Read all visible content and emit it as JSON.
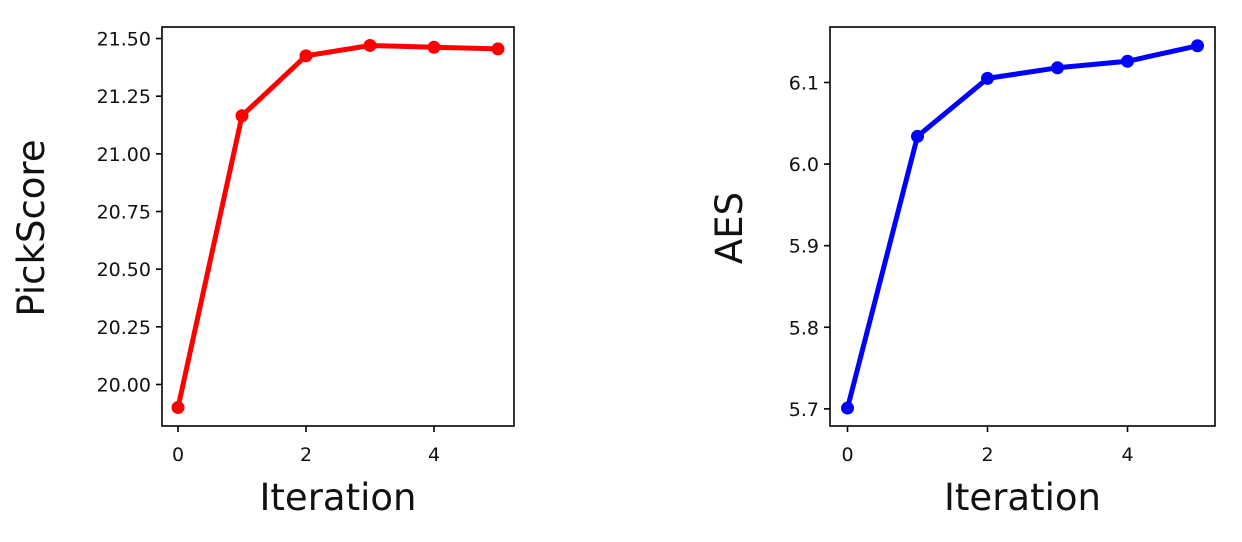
{
  "chart_data": [
    {
      "type": "line",
      "xlabel": "Iteration",
      "ylabel": "PickScore",
      "x": [
        0,
        1,
        2,
        3,
        4,
        5
      ],
      "series": [
        {
          "values": [
            19.9,
            21.165,
            21.425,
            21.47,
            21.462,
            21.455
          ],
          "color": "#ff0000"
        }
      ],
      "xticks": [
        0,
        2,
        4
      ],
      "yticks": [
        20.0,
        20.25,
        20.5,
        20.75,
        21.0,
        21.25,
        21.5
      ],
      "ytick_labels": [
        "20.00",
        "20.25",
        "20.50",
        "20.75",
        "21.00",
        "21.25",
        "21.50"
      ],
      "xlim": [
        -0.25,
        5.25
      ],
      "ylim": [
        19.82,
        21.55
      ],
      "grid": false,
      "marker": "circle"
    },
    {
      "type": "line",
      "xlabel": "Iteration",
      "ylabel": "AES",
      "x": [
        0,
        1,
        2,
        3,
        4,
        5
      ],
      "series": [
        {
          "values": [
            5.701,
            6.034,
            6.105,
            6.118,
            6.126,
            6.145
          ],
          "color": "#0000ff"
        }
      ],
      "xticks": [
        0,
        2,
        4
      ],
      "yticks": [
        5.7,
        5.8,
        5.9,
        6.0,
        6.1
      ],
      "ytick_labels": [
        "5.7",
        "5.8",
        "5.9",
        "6.0",
        "6.1"
      ],
      "xlim": [
        -0.25,
        5.25
      ],
      "ylim": [
        5.679,
        6.168
      ],
      "grid": false,
      "marker": "circle"
    }
  ]
}
